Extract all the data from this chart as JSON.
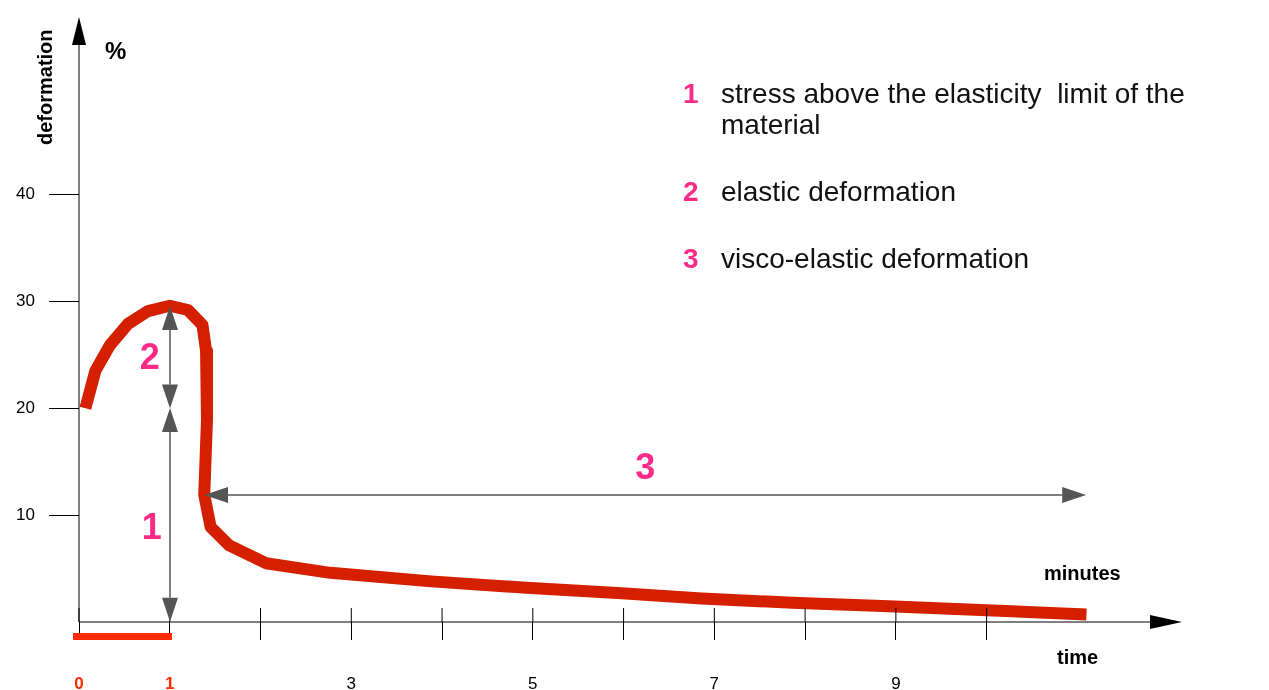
{
  "chart_data": {
    "type": "line",
    "xlabel": "time",
    "ylabel": "deformation",
    "x": [
      0.07,
      0.18,
      0.34,
      0.54,
      0.76,
      1.0,
      1.2,
      1.36,
      1.4,
      1.41,
      1.38,
      1.45,
      1.65,
      2.06,
      2.77,
      3.88,
      4.93,
      5.98,
      6.86,
      7.86,
      8.85,
      10.0,
      11.1
    ],
    "series": [
      {
        "color": "#d42000",
        "values": [
          20.0,
          23.5,
          25.9,
          27.9,
          29.1,
          29.6,
          29.2,
          27.8,
          25.4,
          18.9,
          11.9,
          8.9,
          7.2,
          5.5,
          4.6,
          3.8,
          3.2,
          2.7,
          2.2,
          1.8,
          1.5,
          1.1,
          0.7
        ]
      }
    ],
    "xlim": [
      0,
      11.8
    ],
    "ylim": [
      0,
      54
    ],
    "xticks": [
      0,
      1,
      {
        "value": 2,
        "label": null
      },
      3,
      {
        "value": 4,
        "label": null
      },
      5,
      {
        "value": 6,
        "label": null
      },
      7,
      {
        "value": 8,
        "label": null
      },
      9,
      {
        "value": 10,
        "label": null
      }
    ],
    "yticks": [
      10,
      20,
      30,
      40
    ],
    "grid": false,
    "legend": false,
    "marker": "none",
    "line_style": "solid",
    "annotations": [
      "%",
      "minutes",
      "1 stress above the elasticity  limit of the material",
      "2 elastic deformation",
      "3 visco-elastic deformation",
      "1",
      "2",
      "3"
    ]
  }
}
